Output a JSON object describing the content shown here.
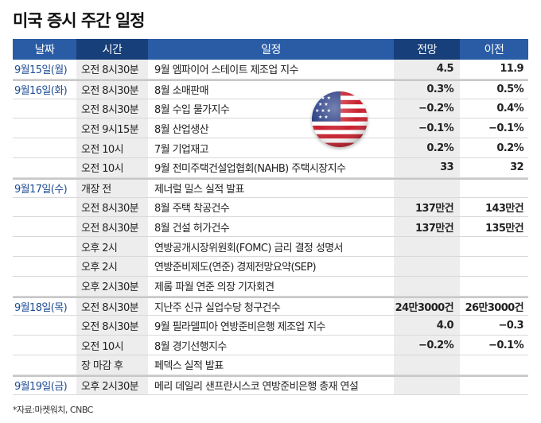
{
  "title": "미국 증시 주간 일정",
  "headers": {
    "date": "날짜",
    "time": "시간",
    "event": "일정",
    "forecast": "전망",
    "previous": "이전"
  },
  "rows": [
    {
      "date": "9월15일(월)",
      "time": "오전 8시30분",
      "event": "9월 엠파이어 스테이트 제조업 지수",
      "forecast": "4.5",
      "previous": "11.9"
    },
    {
      "date": "9월16일(화)",
      "time": "오전 8시30분",
      "event": "8월 소매판매",
      "forecast": "0.3%",
      "previous": "0.5%"
    },
    {
      "date": "",
      "time": "오전 8시30분",
      "event": "8월 수입 물가지수",
      "forecast": "−0.2%",
      "previous": "0.4%"
    },
    {
      "date": "",
      "time": "오전 9시15분",
      "event": "8월 산업생산",
      "forecast": "−0.1%",
      "previous": "−0.1%"
    },
    {
      "date": "",
      "time": "오전 10시",
      "event": "7월 기업재고",
      "forecast": "0.2%",
      "previous": "0.2%"
    },
    {
      "date": "",
      "time": "오전 10시",
      "event": "9월 전미주택건설업협회(NAHB) 주택시장지수",
      "forecast": "33",
      "previous": "32"
    },
    {
      "date": "9월17일(수)",
      "time": "개장 전",
      "event": "제너럴 밀스 실적 발표",
      "forecast": "",
      "previous": ""
    },
    {
      "date": "",
      "time": "오전 8시30분",
      "event": "8월 주택 착공건수",
      "forecast": "137만건",
      "previous": "143만건"
    },
    {
      "date": "",
      "time": "오전 8시30분",
      "event": "8월 건설 허가건수",
      "forecast": "137만건",
      "previous": "135만건"
    },
    {
      "date": "",
      "time": "오후 2시",
      "event": "연방공개시장위원회(FOMC) 금리 결정 성명서",
      "forecast": "",
      "previous": ""
    },
    {
      "date": "",
      "time": "오후 2시",
      "event": "연방준비제도(연준) 경제전망요약(SEP)",
      "forecast": "",
      "previous": ""
    },
    {
      "date": "",
      "time": "오후 2시30분",
      "event": "제롬 파월 연준 의장 기자회견",
      "forecast": "",
      "previous": ""
    },
    {
      "date": "9월18일(목)",
      "time": "오전 8시30분",
      "event": "지난주 신규 실업수당 청구건수",
      "forecast": "24만3000건",
      "previous": "26만3000건"
    },
    {
      "date": "",
      "time": "오전 8시30분",
      "event": "9월 필라델피아 연방준비은행 제조업 지수",
      "forecast": "4.0",
      "previous": "−0.3"
    },
    {
      "date": "",
      "time": "오전 10시",
      "event": "8월 경기선행지수",
      "forecast": "−0.2%",
      "previous": "−0.1%"
    },
    {
      "date": "",
      "time": "장 마감 후",
      "event": "페덱스 실적 발표",
      "forecast": "",
      "previous": ""
    },
    {
      "date": "9월19일(금)",
      "time": "오후 2시30분",
      "event": "메리 데일리 샌프란시스코 연방준비은행 총재 연설",
      "forecast": "",
      "previous": ""
    }
  ],
  "source": "*자료:마켓워치, CNBC",
  "colors": {
    "header_blue": "#2a5ca6",
    "header_navy": "#173f7a",
    "date_text": "#1f4d95",
    "shaded_column": "#ededed"
  },
  "icons": {
    "flag": "us-flag-icon"
  }
}
